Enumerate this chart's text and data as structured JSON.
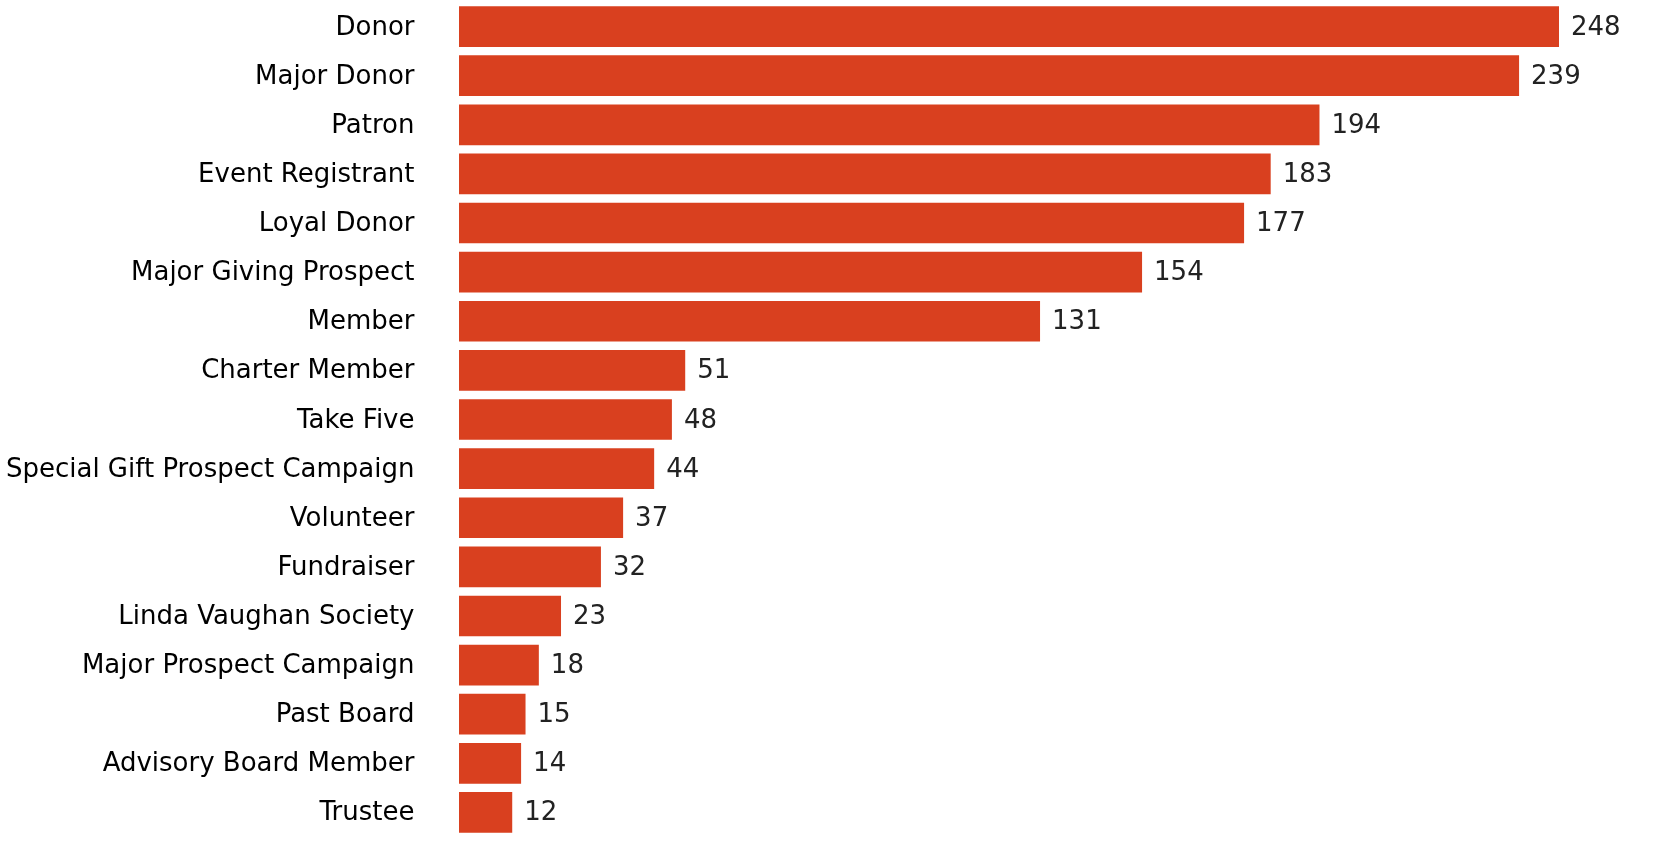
{
  "chart_data": {
    "type": "bar",
    "orientation": "horizontal",
    "tick_labels": "y",
    "data_labels": true,
    "color": "#d9401f",
    "categories": [
      "Donor",
      "Major Donor",
      "Patron",
      "Event Registrant",
      "Loyal Donor",
      "Major Giving Prospect",
      "Member",
      "Charter Member",
      "Take Five",
      "Special Gift Prospect Campaign",
      "Volunteer",
      "Fundraiser",
      "Linda Vaughan Society",
      "Major Prospect Campaign",
      "Past Board",
      "Advisory Board Member",
      "Trustee"
    ],
    "values": [
      248,
      239,
      194,
      183,
      177,
      154,
      131,
      51,
      48,
      44,
      37,
      32,
      23,
      18,
      15,
      14,
      12
    ]
  }
}
